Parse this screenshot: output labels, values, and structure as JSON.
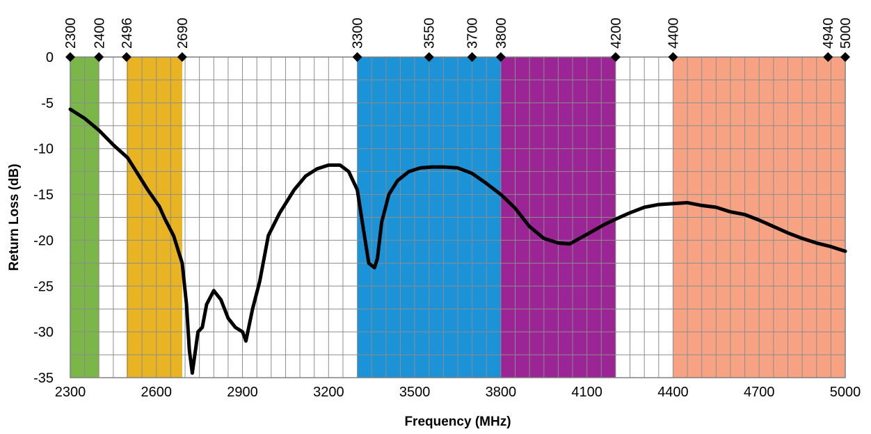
{
  "chart_data": {
    "type": "line",
    "xlabel": "Frequency (MHz)",
    "ylabel": "Return Loss (dB)",
    "xlim": [
      2300,
      5000
    ],
    "ylim": [
      -35,
      0
    ],
    "x_ticks": [
      2300,
      2600,
      2900,
      3200,
      3500,
      3800,
      4100,
      4400,
      4700,
      5000
    ],
    "y_ticks": [
      0,
      -5,
      -10,
      -15,
      -20,
      -25,
      -30,
      -35
    ],
    "minor_x_step": 50,
    "minor_y_step": 2.5,
    "grid": true,
    "band_markers": [
      2300,
      2400,
      2496,
      2690,
      3300,
      3550,
      3700,
      3800,
      4200,
      4400,
      4940,
      5000
    ],
    "bands": [
      {
        "start": 2300,
        "end": 2400,
        "color": "#7ab648"
      },
      {
        "start": 2496,
        "end": 2690,
        "color": "#e8b424"
      },
      {
        "start": 3300,
        "end": 3800,
        "color": "#1b93d6"
      },
      {
        "start": 3800,
        "end": 4200,
        "color": "#9b2594"
      },
      {
        "start": 4400,
        "end": 5000,
        "color": "#f7a283"
      }
    ],
    "line_color": "#000000",
    "series": [
      {
        "x": [
          2300,
          2350,
          2400,
          2450,
          2500,
          2530,
          2570,
          2610,
          2630,
          2660,
          2690,
          2705,
          2715,
          2725,
          2745,
          2760,
          2775,
          2800,
          2825,
          2850,
          2875,
          2900,
          2912,
          2935,
          2960,
          2990,
          3030,
          3080,
          3120,
          3160,
          3200,
          3240,
          3270,
          3300,
          3320,
          3340,
          3360,
          3370,
          3385,
          3410,
          3440,
          3480,
          3520,
          3560,
          3600,
          3650,
          3700,
          3750,
          3800,
          3850,
          3900,
          3950,
          4000,
          4040,
          4080,
          4120,
          4160,
          4200,
          4250,
          4300,
          4350,
          4400,
          4450,
          4500,
          4550,
          4600,
          4650,
          4700,
          4750,
          4800,
          4850,
          4900,
          4950,
          5000
        ],
        "y": [
          -5.7,
          -6.7,
          -8.0,
          -9.6,
          -11.0,
          -12.5,
          -14.5,
          -16.3,
          -17.7,
          -19.5,
          -22.5,
          -27.0,
          -32.0,
          -34.5,
          -30.0,
          -29.5,
          -27.0,
          -25.5,
          -26.5,
          -28.5,
          -29.5,
          -30.0,
          -31.0,
          -27.5,
          -24.5,
          -19.5,
          -17.0,
          -14.5,
          -13.0,
          -12.2,
          -11.8,
          -11.8,
          -12.5,
          -14.5,
          -18.5,
          -22.5,
          -23.0,
          -22.0,
          -18.0,
          -15.0,
          -13.5,
          -12.5,
          -12.1,
          -12.0,
          -12.0,
          -12.1,
          -12.7,
          -13.8,
          -15.0,
          -16.5,
          -18.5,
          -19.8,
          -20.3,
          -20.4,
          -19.7,
          -19.0,
          -18.3,
          -17.7,
          -17.0,
          -16.4,
          -16.1,
          -16.0,
          -15.9,
          -16.2,
          -16.4,
          -16.9,
          -17.2,
          -17.8,
          -18.5,
          -19.2,
          -19.8,
          -20.3,
          -20.7,
          -21.2
        ]
      }
    ]
  }
}
